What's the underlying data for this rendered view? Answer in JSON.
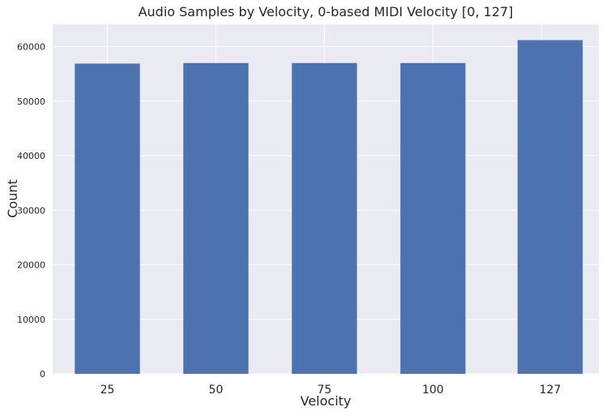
{
  "chart_data": {
    "type": "bar",
    "title": "Audio Samples by Velocity, 0-based MIDI Velocity [0, 127]",
    "xlabel": "Velocity",
    "ylabel": "Count",
    "x": [
      25,
      50,
      75,
      100,
      127
    ],
    "x_tick_labels": [
      "25",
      "50",
      "75",
      "100",
      "127"
    ],
    "values": [
      56900,
      57000,
      57000,
      57000,
      61200
    ],
    "xlim": [
      12.4,
      138.2
    ],
    "ylim": [
      0,
      64100
    ],
    "y_ticks": [
      0,
      10000,
      20000,
      30000,
      40000,
      50000,
      60000
    ],
    "y_tick_labels": [
      "0",
      "10000",
      "20000",
      "30000",
      "40000",
      "50000",
      "60000"
    ],
    "x_grid": [
      25,
      50,
      75,
      100,
      125
    ],
    "bar_width": 15,
    "grid": true,
    "legend": "none",
    "colors": {
      "bar": "#4c72b0",
      "background": "#eaeaf2",
      "grid": "#ffffff",
      "text": "#262626"
    }
  }
}
